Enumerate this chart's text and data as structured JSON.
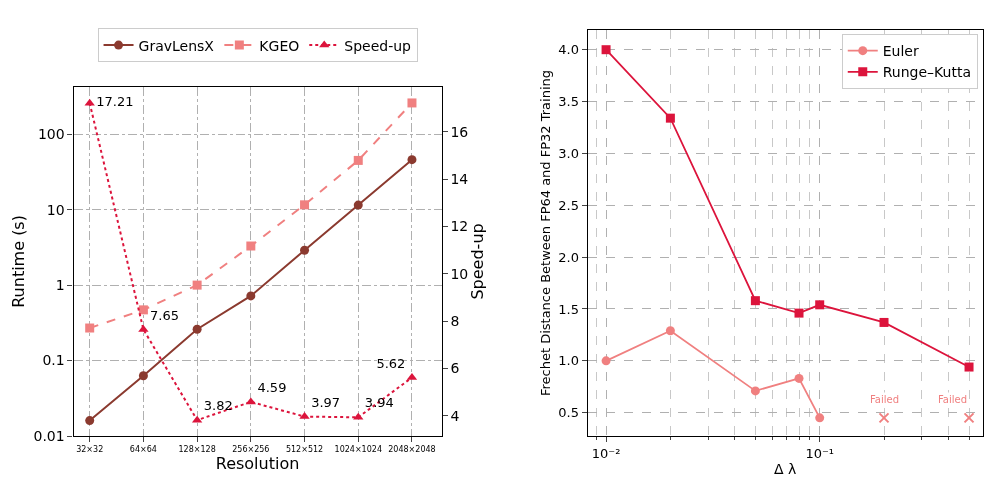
{
  "chart_data": [
    {
      "type": "line",
      "xlabel": "Resolution",
      "ylabel": "Runtime (s)",
      "y2label": "Speed-up",
      "categories": [
        "32×32",
        "64×64",
        "128×128",
        "256×256",
        "512×512",
        "1024×1024",
        "2048×2048"
      ],
      "series": [
        {
          "name": "GravLensX",
          "color": "#8b3a2f",
          "marker": "circle",
          "line_style": "solid",
          "values": [
            0.016,
            0.063,
            0.26,
            0.72,
            2.9,
            11.5,
            46
          ]
        },
        {
          "name": "KGEO",
          "color": "#f08080",
          "marker": "square",
          "line_style": "dashed",
          "values": [
            0.27,
            0.47,
            1.0,
            3.3,
            11.6,
            45,
            260
          ]
        },
        {
          "name": "Speed-up",
          "color": "#dc143c",
          "marker": "triangle",
          "line_style": "dotted",
          "axis": "y2",
          "data_labels": true,
          "values": [
            17.21,
            7.65,
            3.82,
            4.59,
            3.97,
            3.94,
            5.62
          ]
        }
      ],
      "log": "y",
      "ylim": [
        0.01,
        425
      ],
      "yticks": [
        0.01,
        0.1,
        1,
        10,
        100
      ],
      "y2lim": [
        3.15,
        17.9
      ],
      "y2ticks": [
        4,
        6,
        8,
        10,
        12,
        14,
        16
      ],
      "grid": true,
      "legend": "top"
    },
    {
      "type": "line",
      "xlabel": "Δ λ",
      "ylabel": "Frechet Distance Between FP64 and FP32 Training",
      "series": [
        {
          "name": "Euler",
          "color": "#f08080",
          "marker": "circle",
          "line_style": "solid",
          "x": [
            0.01,
            0.02,
            0.05,
            0.08,
            0.1
          ],
          "values": [
            1.0,
            1.29,
            0.71,
            0.83,
            0.45
          ]
        },
        {
          "name": "Runge–Kutta",
          "color": "#dc143c",
          "marker": "square",
          "line_style": "solid",
          "x": [
            0.01,
            0.02,
            0.05,
            0.08,
            0.1,
            0.2,
            0.5
          ],
          "values": [
            4.0,
            3.34,
            1.58,
            1.46,
            1.54,
            1.37,
            0.94
          ]
        },
        {
          "type": "scatter",
          "color": "#f08080",
          "marker": "cross",
          "x": [
            0.2,
            0.5
          ],
          "values": [
            0.45,
            0.45
          ]
        }
      ],
      "annotations": [
        {
          "text": "Failed",
          "x": 0.2,
          "y": 0.45
        },
        {
          "text": "Failed",
          "x": 0.5,
          "y": 0.45
        }
      ],
      "log": "x",
      "xlim": [
        0.0082,
        0.58
      ],
      "xticks": [
        {
          "value": 0.01,
          "label": "10⁻²"
        },
        {
          "value": 0.1,
          "label": "10⁻¹"
        }
      ],
      "ylim": [
        0.275,
        4.19
      ],
      "yticks": [
        {
          "value": 0.5,
          "label": "0.5"
        },
        {
          "value": 1.0,
          "label": "1.0"
        },
        {
          "value": 1.5,
          "label": "1.5"
        },
        {
          "value": 2.0,
          "label": "2.0"
        },
        {
          "value": 2.5,
          "label": "2.5"
        },
        {
          "value": 3.0,
          "label": "3.0"
        },
        {
          "value": 3.5,
          "label": "3.5"
        },
        {
          "value": 4.0,
          "label": "4.0"
        }
      ],
      "grid": true,
      "legend": "top right"
    }
  ]
}
